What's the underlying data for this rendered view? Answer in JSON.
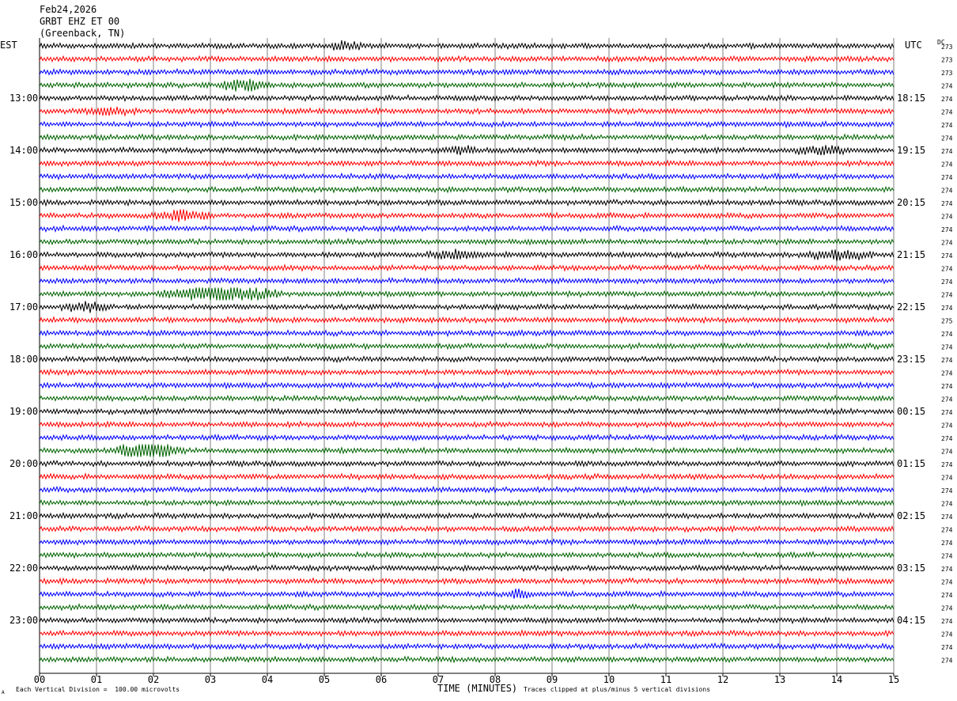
{
  "header": {
    "date": "Feb24,2026",
    "station": "GRBT EHZ ET 00",
    "location": "(Greenback, TN)"
  },
  "left_zone_label": "EST",
  "right_zone_label": "UTC",
  "dc_label": "DC",
  "footer": {
    "scale_note": "Each Vertical Division =  100.00 microvolts",
    "clip_note": "Traces clipped at plus/minus 5 vertical divisions",
    "corner_mark": "A"
  },
  "colors": {
    "black": "#000000",
    "red": "#ff0000",
    "blue": "#0000ff",
    "green": "#006400",
    "grid": "#808080"
  },
  "chart_data": {
    "type": "line",
    "title": "",
    "xlabel": "TIME (MINUTES)",
    "ylabel": "",
    "xlim": [
      0,
      15
    ],
    "x_ticks": [
      "00",
      "01",
      "02",
      "03",
      "04",
      "05",
      "06",
      "07",
      "08",
      "09",
      "10",
      "11",
      "12",
      "13",
      "14",
      "15"
    ],
    "trace_minutes": 15,
    "trace_colors": [
      "black",
      "red",
      "blue",
      "green"
    ],
    "rows": 48,
    "left_time_labels": [
      {
        "row": 4,
        "text": "13:00"
      },
      {
        "row": 8,
        "text": "14:00"
      },
      {
        "row": 12,
        "text": "15:00"
      },
      {
        "row": 16,
        "text": "16:00"
      },
      {
        "row": 20,
        "text": "17:00"
      },
      {
        "row": 24,
        "text": "18:00"
      },
      {
        "row": 28,
        "text": "19:00"
      },
      {
        "row": 32,
        "text": "20:00"
      },
      {
        "row": 36,
        "text": "21:00"
      },
      {
        "row": 40,
        "text": "22:00"
      },
      {
        "row": 44,
        "text": "23:00"
      }
    ],
    "right_time_labels": [
      {
        "row": 4,
        "text": "18:15"
      },
      {
        "row": 8,
        "text": "19:15"
      },
      {
        "row": 12,
        "text": "20:15"
      },
      {
        "row": 16,
        "text": "21:15"
      },
      {
        "row": 20,
        "text": "22:15"
      },
      {
        "row": 24,
        "text": "23:15"
      },
      {
        "row": 28,
        "text": "00:15"
      },
      {
        "row": 32,
        "text": "01:15"
      },
      {
        "row": 36,
        "text": "02:15"
      },
      {
        "row": 40,
        "text": "03:15"
      },
      {
        "row": 44,
        "text": "04:15"
      }
    ],
    "dc_offsets": [
      "273",
      "273",
      "273",
      "274",
      "274",
      "274",
      "274",
      "274",
      "274",
      "274",
      "274",
      "274",
      "274",
      "274",
      "274",
      "274",
      "274",
      "274",
      "274",
      "274",
      "274",
      "275",
      "274",
      "274",
      "274",
      "274",
      "274",
      "274",
      "274",
      "274",
      "274",
      "274",
      "274",
      "274",
      "274",
      "274",
      "274",
      "274",
      "274",
      "274",
      "274",
      "274",
      "274",
      "274",
      "274",
      "274",
      "274",
      "274"
    ],
    "events": [
      {
        "row": 0,
        "minute": 5.35,
        "amp": 1.8,
        "dur": 0.4
      },
      {
        "row": 3,
        "minute": 3.6,
        "amp": 2.4,
        "dur": 0.5
      },
      {
        "row": 5,
        "minute": 1.2,
        "amp": 1.4,
        "dur": 0.6
      },
      {
        "row": 8,
        "minute": 7.4,
        "amp": 1.4,
        "dur": 0.5
      },
      {
        "row": 8,
        "minute": 13.7,
        "amp": 1.6,
        "dur": 0.6
      },
      {
        "row": 13,
        "minute": 2.5,
        "amp": 2.2,
        "dur": 0.6
      },
      {
        "row": 16,
        "minute": 7.3,
        "amp": 1.5,
        "dur": 0.6
      },
      {
        "row": 16,
        "minute": 14.0,
        "amp": 2.0,
        "dur": 0.7
      },
      {
        "row": 19,
        "minute": 3.2,
        "amp": 3.2,
        "dur": 1.2
      },
      {
        "row": 20,
        "minute": 0.8,
        "amp": 1.5,
        "dur": 0.5
      },
      {
        "row": 31,
        "minute": 1.9,
        "amp": 3.8,
        "dur": 0.7
      },
      {
        "row": 42,
        "minute": 8.45,
        "amp": 2.6,
        "dur": 0.25
      }
    ]
  }
}
